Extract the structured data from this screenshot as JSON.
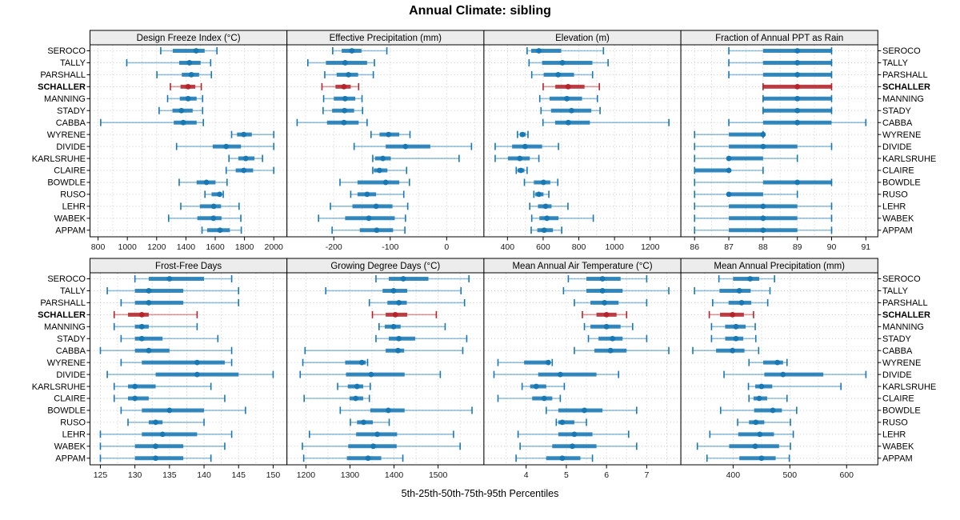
{
  "title": "Annual Climate: sibling",
  "caption": "5th-25th-50th-75th-95th Percentiles",
  "percentile_levels": [
    5,
    25,
    50,
    75,
    95
  ],
  "stations": [
    "SEROCO",
    "TALLY",
    "PARSHALL",
    "SCHALLER",
    "MANNING",
    "STADY",
    "CABBA",
    "WYRENE",
    "DIVIDE",
    "KARLSRUHE",
    "CLAIRE",
    "BOWDLE",
    "RUSO",
    "LEHR",
    "WABEK",
    "APPAM"
  ],
  "highlighted_station": "SCHALLER",
  "colors": {
    "series": "#1878b4",
    "highlight": "#b5242b",
    "strip_bg": "#ececec",
    "grid": "#c9c9c9",
    "border": "#000000",
    "text": "#000000"
  },
  "chart_data": [
    {
      "type": "scatter",
      "title": "Design Freeze Index (°C)",
      "row": 0,
      "col": 0,
      "xlim": [
        745,
        2090
      ],
      "xticks": [
        800,
        1000,
        1200,
        1400,
        1600,
        1800,
        2000
      ],
      "percentiles": {
        "SEROCO": [
          1228,
          1310,
          1470,
          1528,
          1612
        ],
        "TALLY": [
          996,
          1354,
          1424,
          1500,
          1569
        ],
        "PARSHALL": [
          1202,
          1372,
          1437,
          1490,
          1574
        ],
        "SCHALLER": [
          1294,
          1363,
          1415,
          1464,
          1505
        ],
        "MANNING": [
          1275,
          1358,
          1415,
          1473,
          1514
        ],
        "STADY": [
          1217,
          1308,
          1369,
          1446,
          1514
        ],
        "CABBA": [
          818,
          1317,
          1382,
          1473,
          1519
        ],
        "WYRENE": [
          1712,
          1749,
          1795,
          1850,
          2000
        ],
        "DIVIDE": [
          1336,
          1583,
          1675,
          1776,
          2000
        ],
        "KARLSRUHE": [
          1694,
          1758,
          1809,
          1868,
          1923
        ],
        "CLAIRE": [
          1675,
          1740,
          1795,
          1859,
          2000
        ],
        "BOWDLE": [
          1354,
          1473,
          1540,
          1602,
          1681
        ],
        "RUSO": [
          1530,
          1575,
          1630,
          1645,
          1655
        ],
        "LEHR": [
          1365,
          1495,
          1590,
          1640,
          1763
        ],
        "WABEK": [
          1282,
          1478,
          1588,
          1643,
          1775
        ],
        "APPAM": [
          1510,
          1545,
          1633,
          1700,
          1778
        ]
      }
    },
    {
      "type": "scatter",
      "title": "Effective Precipitation (mm)",
      "row": 0,
      "col": 1,
      "xlim": [
        -283,
        66
      ],
      "xticks": [
        -200,
        -100,
        0
      ],
      "percentiles": {
        "SEROCO": [
          -202,
          -186,
          -168,
          -151,
          -106
        ],
        "TALLY": [
          -246,
          -214,
          -180,
          -141,
          -128
        ],
        "PARSHALL": [
          -216,
          -195,
          -174,
          -157,
          -130
        ],
        "SCHALLER": [
          -221,
          -197,
          -182,
          -170,
          -156
        ],
        "MANNING": [
          -218,
          -200,
          -180,
          -162,
          -150
        ],
        "STADY": [
          -219,
          -203,
          -181,
          -164,
          -149
        ],
        "CABBA": [
          -265,
          -212,
          -182,
          -156,
          -141
        ],
        "WYRENE": [
          -134,
          -119,
          -103,
          -84,
          -65
        ],
        "DIVIDE": [
          -164,
          -108,
          -73,
          -29,
          44
        ],
        "KARLSRUHE": [
          -131,
          -127,
          -113,
          -99,
          22
        ],
        "CLAIRE": [
          -131,
          -129,
          -119,
          -105,
          -71
        ],
        "BOWDLE": [
          -189,
          -158,
          -108,
          -84,
          -66
        ],
        "RUSO": [
          -170,
          -158,
          -141,
          -125,
          -76
        ],
        "LEHR": [
          -206,
          -167,
          -125,
          -96,
          -69
        ],
        "WABEK": [
          -227,
          -180,
          -138,
          -92,
          -73
        ],
        "APPAM": [
          -203,
          -154,
          -124,
          -95,
          -74
        ]
      }
    },
    {
      "type": "scatter",
      "title": "Elevation (m)",
      "row": 0,
      "col": 2,
      "xlim": [
        268,
        1372
      ],
      "xticks": [
        400,
        600,
        800,
        1000,
        1200
      ],
      "percentiles": {
        "SEROCO": [
          510,
          533,
          576,
          701,
          938
        ],
        "TALLY": [
          521,
          594,
          708,
          876,
          964
        ],
        "PARSHALL": [
          536,
          603,
          684,
          773,
          877
        ],
        "SCHALLER": [
          600,
          668,
          740,
          832,
          915
        ],
        "MANNING": [
          581,
          636,
          733,
          818,
          904
        ],
        "STADY": [
          588,
          644,
          759,
          870,
          919
        ],
        "CABBA": [
          599,
          667,
          741,
          862,
          1305
        ],
        "WYRENE": [
          456,
          469,
          484,
          502,
          515
        ],
        "DIVIDE": [
          331,
          426,
          499,
          594,
          686
        ],
        "KARLSRUHE": [
          331,
          403,
          469,
          525,
          576
        ],
        "CLAIRE": [
          449,
          456,
          475,
          495,
          510
        ],
        "BOWDLE": [
          495,
          548,
          602,
          640,
          682
        ],
        "RUSO": [
          548,
          556,
          576,
          602,
          632
        ],
        "LEHR": [
          525,
          571,
          614,
          647,
          739
        ],
        "WABEK": [
          536,
          579,
          621,
          686,
          881
        ],
        "APPAM": [
          533,
          567,
          606,
          655,
          704
        ]
      }
    },
    {
      "type": "scatter",
      "title": "Fraction of Annual PPT as Rain",
      "row": 0,
      "col": 3,
      "xlim": [
        85.6,
        91.35
      ],
      "xticks": [
        86,
        87,
        88,
        89,
        90,
        91
      ],
      "percentiles": {
        "SEROCO": [
          87,
          88,
          89,
          90,
          90
        ],
        "TALLY": [
          87,
          88,
          89,
          90,
          90
        ],
        "PARSHALL": [
          87,
          88,
          89,
          90,
          90
        ],
        "SCHALLER": [
          88,
          88,
          89,
          90,
          90
        ],
        "MANNING": [
          88,
          88,
          89,
          90,
          90
        ],
        "STADY": [
          88,
          88,
          89,
          90,
          90
        ],
        "CABBA": [
          87,
          88,
          89,
          90,
          91
        ],
        "WYRENE": [
          86,
          87,
          88,
          88,
          88
        ],
        "DIVIDE": [
          86,
          87,
          88,
          89,
          90
        ],
        "KARLSRUHE": [
          86,
          87,
          87,
          88,
          89
        ],
        "CLAIRE": [
          86,
          86,
          87,
          87,
          88
        ],
        "BOWDLE": [
          86,
          88,
          89,
          90,
          90
        ],
        "RUSO": [
          86,
          87,
          87,
          88,
          89
        ],
        "LEHR": [
          86,
          87,
          88,
          89,
          90
        ],
        "WABEK": [
          86,
          87,
          88,
          89,
          90
        ],
        "APPAM": [
          86,
          87,
          88,
          89,
          90
        ]
      }
    },
    {
      "type": "scatter",
      "title": "Frost-Free Days",
      "row": 1,
      "col": 0,
      "xlim": [
        123.5,
        152
      ],
      "xticks": [
        125,
        130,
        135,
        140,
        145,
        150
      ],
      "percentiles": {
        "SEROCO": [
          130,
          132,
          135,
          140,
          144
        ],
        "TALLY": [
          126,
          130,
          132,
          137,
          145
        ],
        "PARSHALL": [
          128,
          130,
          132,
          137,
          145
        ],
        "SCHALLER": [
          127,
          129,
          131,
          132,
          139
        ],
        "MANNING": [
          127,
          130,
          131,
          132,
          139
        ],
        "STADY": [
          128,
          130,
          131,
          134,
          142
        ],
        "CABBA": [
          125,
          130,
          132,
          135,
          144
        ],
        "WYRENE": [
          128,
          131,
          139,
          143,
          144
        ],
        "DIVIDE": [
          126,
          133,
          139,
          145,
          150
        ],
        "KARLSRUHE": [
          127,
          129,
          130,
          133,
          141
        ],
        "CLAIRE": [
          127,
          129,
          130,
          132,
          143
        ],
        "BOWDLE": [
          128,
          131,
          135,
          140,
          146
        ],
        "RUSO": [
          129,
          132,
          133,
          134,
          140
        ],
        "LEHR": [
          125,
          131,
          134,
          139,
          144
        ],
        "WABEK": [
          125,
          130,
          133,
          137,
          143
        ],
        "APPAM": [
          125,
          130,
          133,
          137,
          141
        ]
      }
    },
    {
      "type": "scatter",
      "title": "Growing Degree Days (°C)",
      "row": 1,
      "col": 1,
      "xlim": [
        1157,
        1604
      ],
      "xticks": [
        1200,
        1300,
        1400,
        1500
      ],
      "percentiles": {
        "SEROCO": [
          1359,
          1388,
          1421,
          1478,
          1570
        ],
        "TALLY": [
          1245,
          1374,
          1399,
          1430,
          1552
        ],
        "PARSHALL": [
          1344,
          1385,
          1411,
          1429,
          1560
        ],
        "SCHALLER": [
          1351,
          1381,
          1403,
          1430,
          1496
        ],
        "MANNING": [
          1366,
          1379,
          1399,
          1415,
          1516
        ],
        "STADY": [
          1359,
          1388,
          1411,
          1448,
          1565
        ],
        "CABBA": [
          1198,
          1381,
          1409,
          1423,
          1556
        ],
        "WYRENE": [
          1193,
          1289,
          1327,
          1336,
          1340
        ],
        "DIVIDE": [
          1187,
          1291,
          1348,
          1424,
          1505
        ],
        "KARLSRUHE": [
          1272,
          1295,
          1316,
          1330,
          1346
        ],
        "CLAIRE": [
          1196,
          1299,
          1313,
          1330,
          1344
        ],
        "BOWDLE": [
          1278,
          1346,
          1387,
          1424,
          1577
        ],
        "RUSO": [
          1301,
          1316,
          1331,
          1352,
          1389
        ],
        "LEHR": [
          1208,
          1314,
          1362,
          1407,
          1535
        ],
        "WABEK": [
          1192,
          1296,
          1353,
          1406,
          1550
        ],
        "APPAM": [
          1195,
          1293,
          1341,
          1371,
          1420
        ]
      }
    },
    {
      "type": "scatter",
      "title": "Mean Annual Air Temperature (°C)",
      "row": 1,
      "col": 2,
      "xlim": [
        2.95,
        7.85
      ],
      "xticks": [
        4,
        5,
        6,
        7
      ],
      "percentiles": {
        "SEROCO": [
          5.05,
          5.5,
          5.9,
          6.35,
          7.0
        ],
        "TALLY": [
          4.93,
          5.5,
          5.9,
          6.4,
          7.55
        ],
        "PARSHALL": [
          5.2,
          5.6,
          5.95,
          6.3,
          7.0
        ],
        "SCHALLER": [
          5.4,
          5.75,
          6.0,
          6.25,
          6.5
        ],
        "MANNING": [
          5.45,
          5.6,
          6.0,
          6.35,
          6.65
        ],
        "STADY": [
          5.55,
          5.8,
          6.15,
          6.4,
          7.0
        ],
        "CABBA": [
          5.2,
          5.7,
          6.1,
          6.5,
          7.55
        ],
        "WYRENE": [
          3.3,
          3.95,
          4.55,
          4.6,
          4.65
        ],
        "DIVIDE": [
          3.2,
          4.3,
          4.85,
          5.75,
          6.3
        ],
        "KARLSRUHE": [
          3.9,
          4.1,
          4.25,
          4.5,
          4.95
        ],
        "CLAIRE": [
          3.3,
          4.15,
          4.45,
          4.65,
          4.85
        ],
        "BOWDLE": [
          4.5,
          4.8,
          5.45,
          5.9,
          6.75
        ],
        "RUSO": [
          4.75,
          4.8,
          4.9,
          5.2,
          5.5
        ],
        "LEHR": [
          3.8,
          4.8,
          5.2,
          5.65,
          6.55
        ],
        "WABEK": [
          3.85,
          4.65,
          5.15,
          5.75,
          6.75
        ],
        "APPAM": [
          3.75,
          4.5,
          4.9,
          5.35,
          5.65
        ]
      }
    },
    {
      "type": "scatter",
      "title": "Mean Annual Precipitation (mm)",
      "row": 1,
      "col": 3,
      "xlim": [
        308,
        655
      ],
      "xticks": [
        400,
        500,
        600
      ],
      "percentiles": {
        "SEROCO": [
          375,
          400,
          430,
          446,
          473
        ],
        "TALLY": [
          332,
          376,
          411,
          431,
          465
        ],
        "PARSHALL": [
          364,
          392,
          415,
          432,
          461
        ],
        "SCHALLER": [
          358,
          377,
          399,
          419,
          436
        ],
        "MANNING": [
          362,
          386,
          405,
          422,
          439
        ],
        "STADY": [
          362,
          386,
          405,
          418,
          440
        ],
        "CABBA": [
          329,
          370,
          399,
          420,
          445
        ],
        "WYRENE": [
          428,
          453,
          478,
          488,
          495
        ],
        "DIVIDE": [
          384,
          455,
          488,
          559,
          634
        ],
        "KARLSRUHE": [
          427,
          439,
          450,
          469,
          590
        ],
        "CLAIRE": [
          428,
          436,
          446,
          460,
          495
        ],
        "BOWDLE": [
          378,
          437,
          470,
          486,
          512
        ],
        "RUSO": [
          408,
          428,
          440,
          455,
          501
        ],
        "LEHR": [
          359,
          409,
          447,
          472,
          506
        ],
        "WABEK": [
          337,
          393,
          439,
          481,
          501
        ],
        "APPAM": [
          354,
          411,
          450,
          475,
          499
        ]
      }
    }
  ]
}
